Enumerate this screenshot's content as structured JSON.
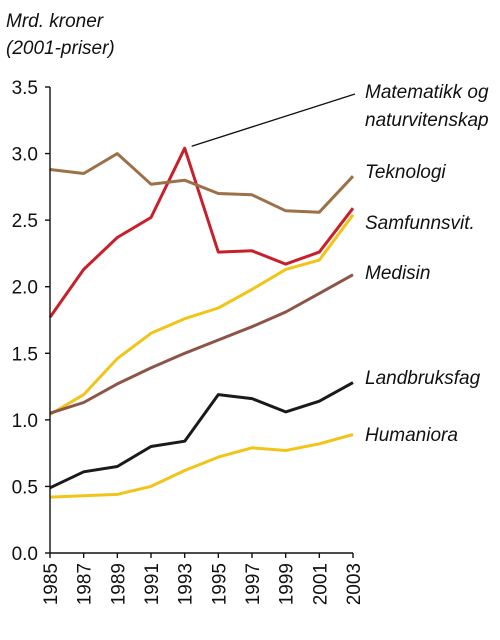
{
  "chart_data": {
    "type": "line",
    "title": "",
    "ylabel_lines": [
      "Mrd. kroner",
      "(2001-priser)"
    ],
    "xlabel": "",
    "x": [
      "1985",
      "1987",
      "1989",
      "1991",
      "1993",
      "1995",
      "1997",
      "1999",
      "2001",
      "2003"
    ],
    "ylim": [
      0,
      3.5
    ],
    "yticks": [
      "0.0",
      "0.5",
      "1.0",
      "1.5",
      "2.0",
      "2.5",
      "3.0",
      "3.5"
    ],
    "grid": false,
    "legend": "direct labels at right end of lines",
    "series": [
      {
        "label_lines": [
          "Matematikk og",
          "naturvitenskap"
        ],
        "color": "#c8202a",
        "values": [
          1.77,
          2.13,
          2.37,
          2.52,
          3.04,
          2.26,
          2.27,
          2.17,
          2.26,
          2.59
        ]
      },
      {
        "label_lines": [
          "Teknologi"
        ],
        "color": "#9c7049",
        "values": [
          2.88,
          2.85,
          3.0,
          2.77,
          2.8,
          2.7,
          2.69,
          2.57,
          2.56,
          2.83
        ]
      },
      {
        "label_lines": [
          "Samfunnsvit."
        ],
        "color": "#f2c418",
        "values": [
          1.04,
          1.19,
          1.46,
          1.65,
          1.76,
          1.84,
          1.98,
          2.13,
          2.2,
          2.54
        ]
      },
      {
        "label_lines": [
          "Medisin"
        ],
        "color": "#8c5548",
        "values": [
          1.05,
          1.13,
          1.27,
          1.39,
          1.5,
          1.6,
          1.7,
          1.81,
          1.95,
          2.09
        ]
      },
      {
        "label_lines": [
          "Landbruksfag"
        ],
        "color": "#1a1a1a",
        "values": [
          0.49,
          0.61,
          0.65,
          0.8,
          0.84,
          1.19,
          1.16,
          1.06,
          1.14,
          1.28
        ]
      },
      {
        "label_lines": [
          "Humaniora"
        ],
        "color": "#f2c418",
        "values": [
          0.42,
          0.43,
          0.44,
          0.5,
          0.62,
          0.72,
          0.79,
          0.77,
          0.82,
          0.89
        ]
      }
    ]
  }
}
